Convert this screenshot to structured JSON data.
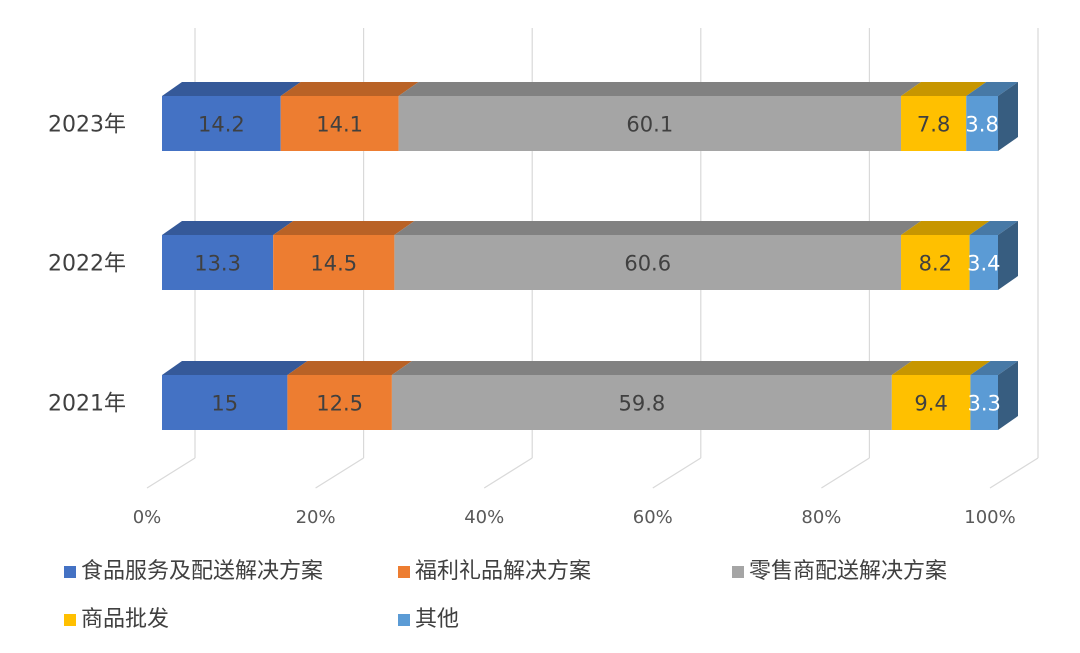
{
  "chart_data": {
    "type": "bar",
    "orientation": "horizontal",
    "stacked": "percent",
    "style": "3d",
    "categories": [
      "2023年",
      "2022年",
      "2021年"
    ],
    "series": [
      {
        "name": "食品服务及配送解决方案",
        "values": [
          14.2,
          13.3,
          15
        ],
        "color": "#4472c4"
      },
      {
        "name": "福利礼品解决方案",
        "values": [
          14.1,
          14.5,
          12.5
        ],
        "color": "#ed7d31"
      },
      {
        "name": "零售商配送解决方案",
        "values": [
          60.1,
          60.6,
          59.8
        ],
        "color": "#a5a5a5"
      },
      {
        "name": "商品批发",
        "values": [
          7.8,
          8.2,
          9.4
        ],
        "color": "#ffc000"
      },
      {
        "name": "其他",
        "values": [
          3.8,
          3.4,
          3.3
        ],
        "color": "#5b9bd5"
      }
    ],
    "x_ticks": [
      "0%",
      "20%",
      "40%",
      "60%",
      "80%",
      "100%"
    ],
    "xlim": [
      0,
      100
    ],
    "grid": true,
    "legend_position": "bottom",
    "data_labels": true,
    "title": "",
    "xlabel": "",
    "ylabel": ""
  }
}
